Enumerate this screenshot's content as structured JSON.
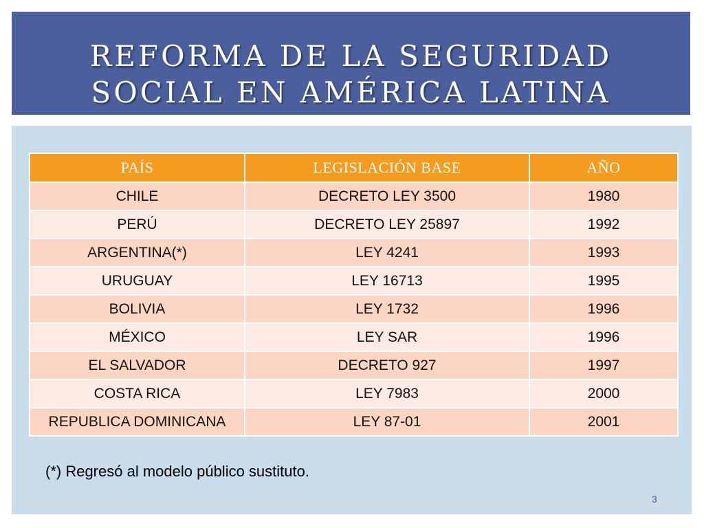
{
  "slide": {
    "title_lines": [
      "REFORMA DE LA SEGURIDAD",
      "SOCIAL EN AMÉRICA LATINA"
    ],
    "table": {
      "headers": [
        "PAÍS",
        "LEGISLACIÓN BASE",
        "AÑO"
      ],
      "rows": [
        [
          "CHILE",
          "DECRETO LEY 3500",
          "1980"
        ],
        [
          "PERÚ",
          "DECRETO LEY 25897",
          "1992"
        ],
        [
          "ARGENTINA(*)",
          "LEY 4241",
          "1993"
        ],
        [
          "URUGUAY",
          "LEY 16713",
          "1995"
        ],
        [
          "BOLIVIA",
          "LEY 1732",
          "1996"
        ],
        [
          "MÉXICO",
          "LEY SAR",
          "1996"
        ],
        [
          "EL SALVADOR",
          "DECRETO 927",
          "1997"
        ],
        [
          "COSTA RICA",
          "LEY 7983",
          "2000"
        ],
        [
          "REPUBLICA  DOMINICANA",
          "LEY 87-01",
          "2001"
        ]
      ]
    },
    "footnote": "(*) Regresó al modelo público sustituto.",
    "page_number": "3",
    "colors": {
      "title_band": "#4a5f9c",
      "content_panel": "#c9dcea",
      "header_row": "#f59b1f",
      "row_odd": "#fcd6c2",
      "row_even": "#fdeae2"
    }
  }
}
